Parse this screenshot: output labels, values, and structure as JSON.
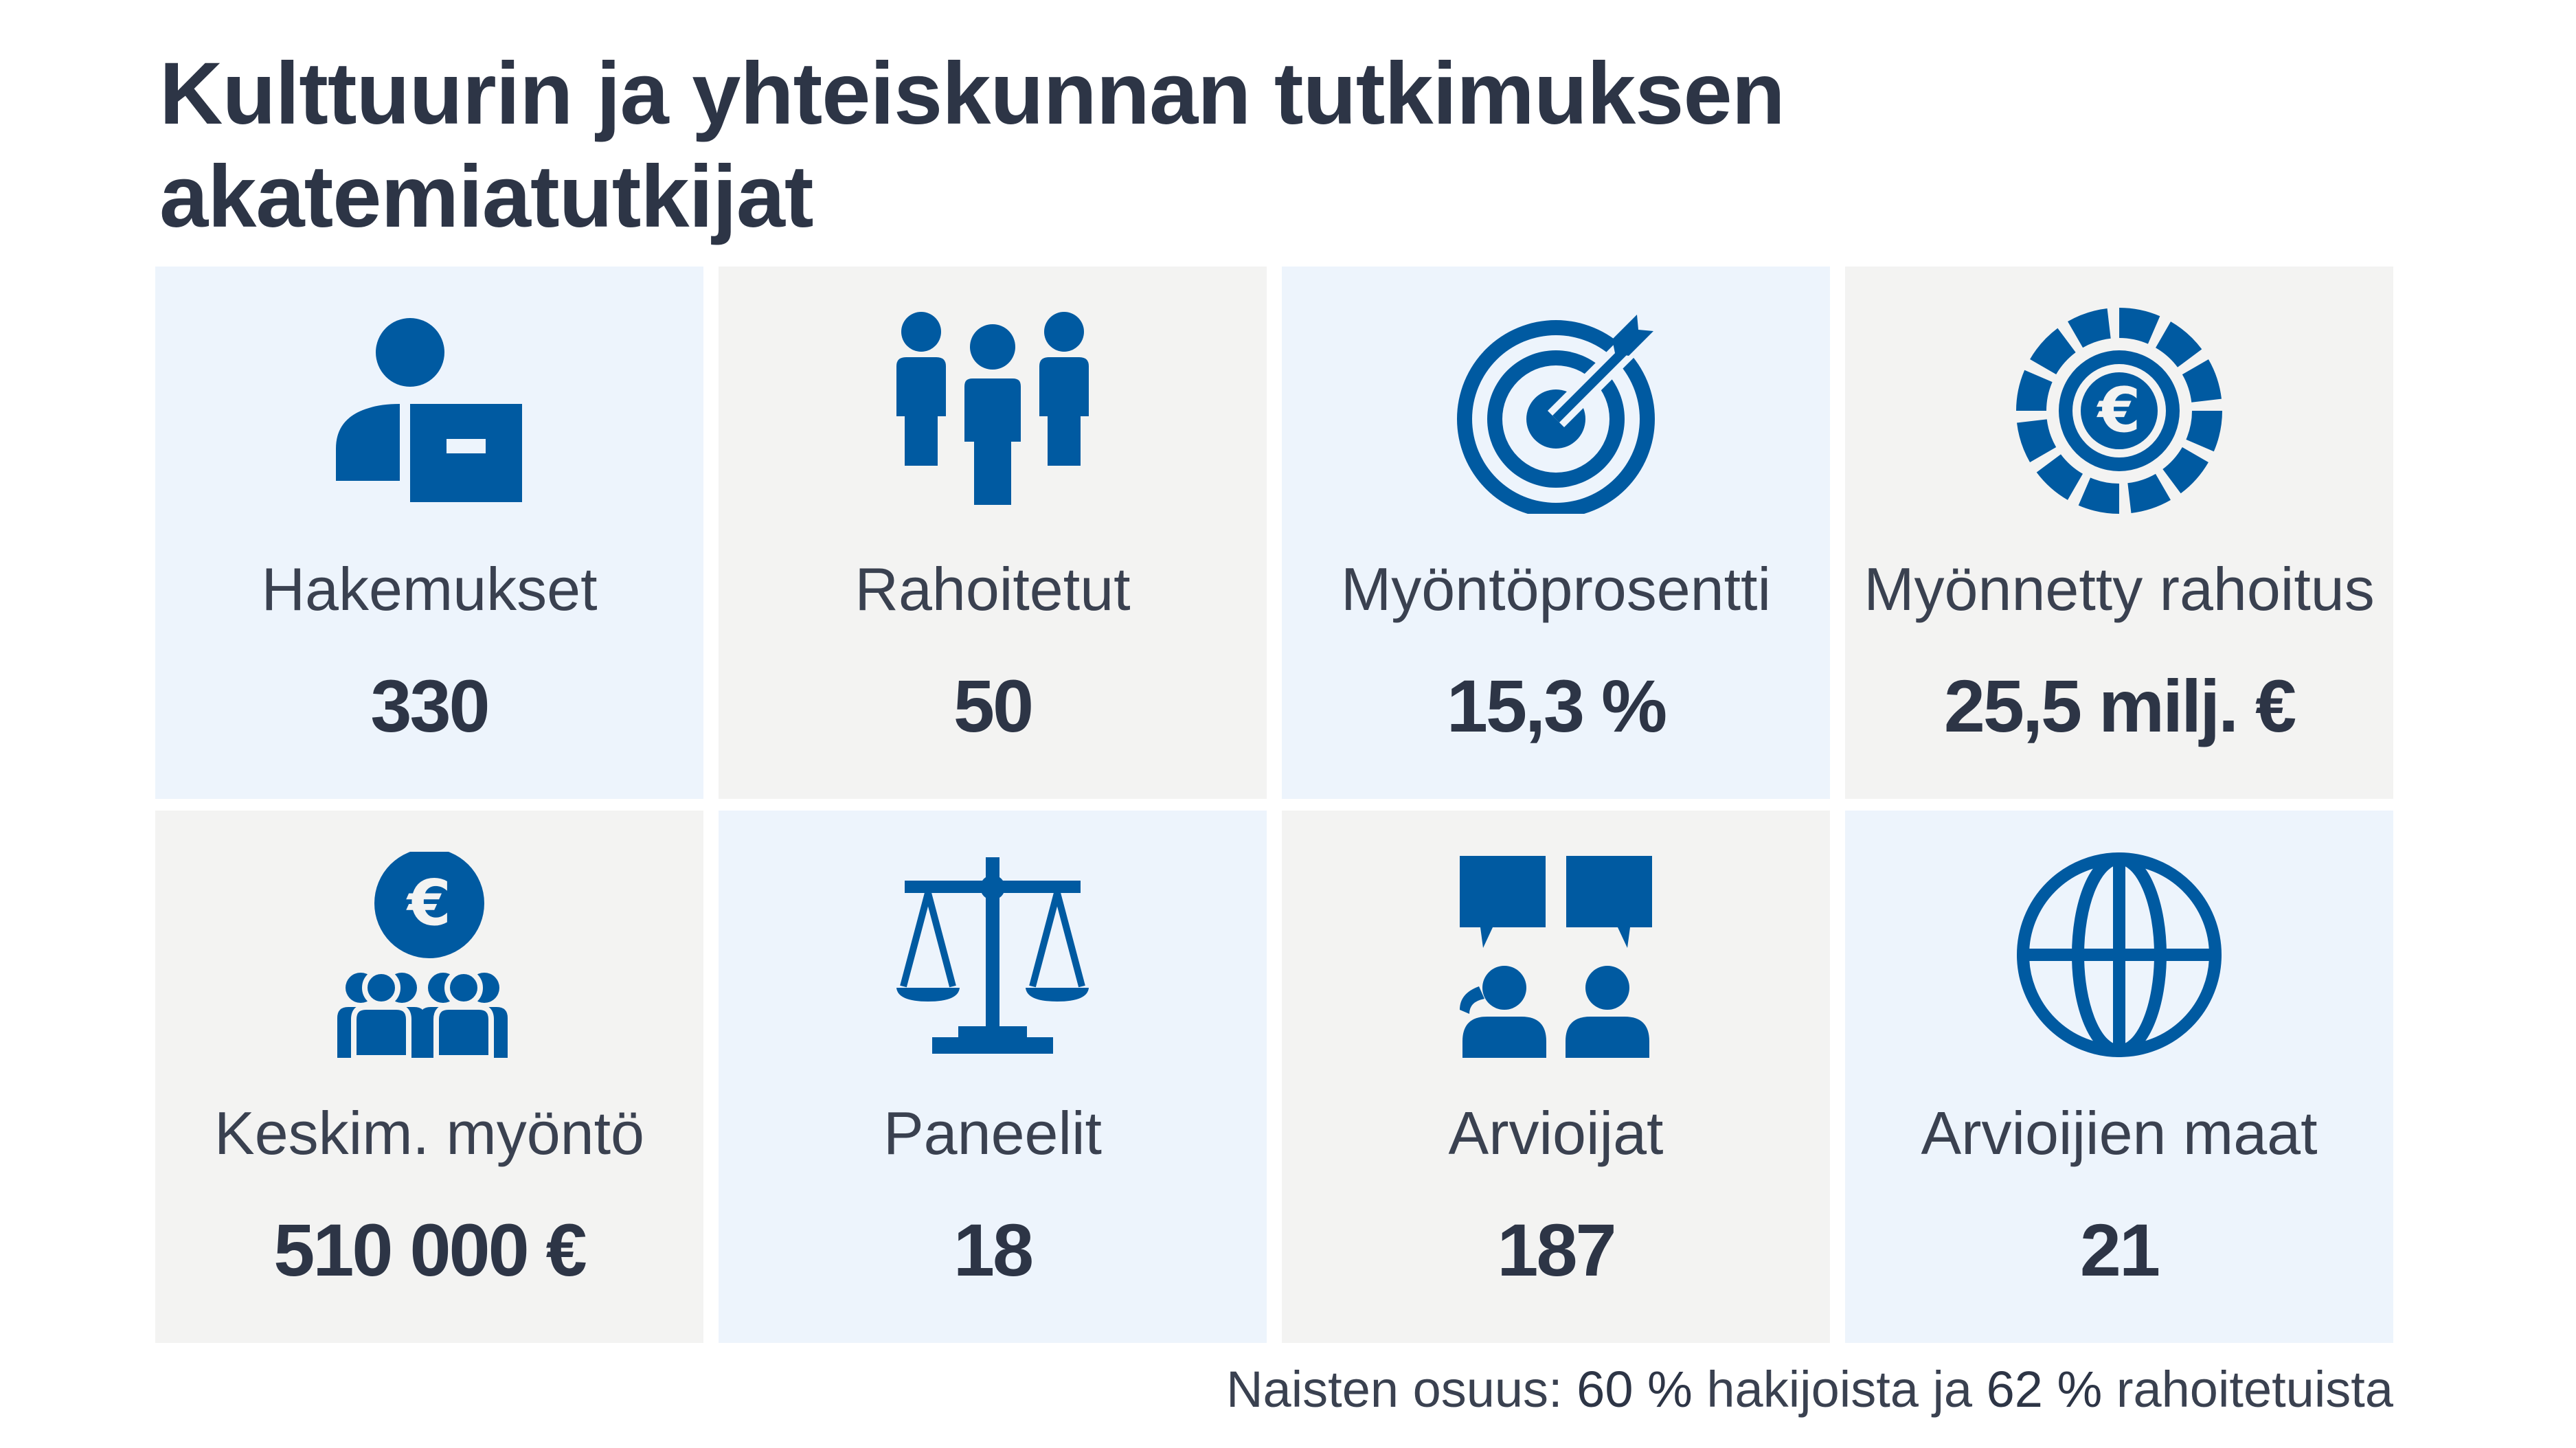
{
  "title": {
    "line1": "Kulttuurin ja yhteiskunnan tutkimuksen",
    "line2": "akatemiatutkijat"
  },
  "colors": {
    "icon": "#005aa1",
    "text": "#2d3546",
    "tile_blue": "#edf4fc",
    "tile_grey": "#f3f3f2"
  },
  "tiles": [
    {
      "icon": "applicant-icon",
      "label": "Hakemukset",
      "value": "330"
    },
    {
      "icon": "group-icon",
      "label": "Rahoitetut",
      "value": "50"
    },
    {
      "icon": "target-icon",
      "label": "Myöntöprosentti",
      "value": "15,3 %"
    },
    {
      "icon": "euro-coin-icon",
      "label": "Myönnetty rahoitus",
      "value": "25,5 milj. €"
    },
    {
      "icon": "euro-people-icon",
      "label": "Keskim. myöntö",
      "value": "510 000 €"
    },
    {
      "icon": "scales-icon",
      "label": "Paneelit",
      "value": "18"
    },
    {
      "icon": "reviewers-chat-icon",
      "label": "Arvioijat",
      "value": "187"
    },
    {
      "icon": "globe-icon",
      "label": "Arvioijien maat",
      "value": "21"
    }
  ],
  "footnote": {
    "prefix": "Naisten osuus: ",
    "women_applicants": "60 %",
    "middle": " hakijoista ja ",
    "women_funded": "62 %",
    "suffix": " rahoitetuista"
  }
}
